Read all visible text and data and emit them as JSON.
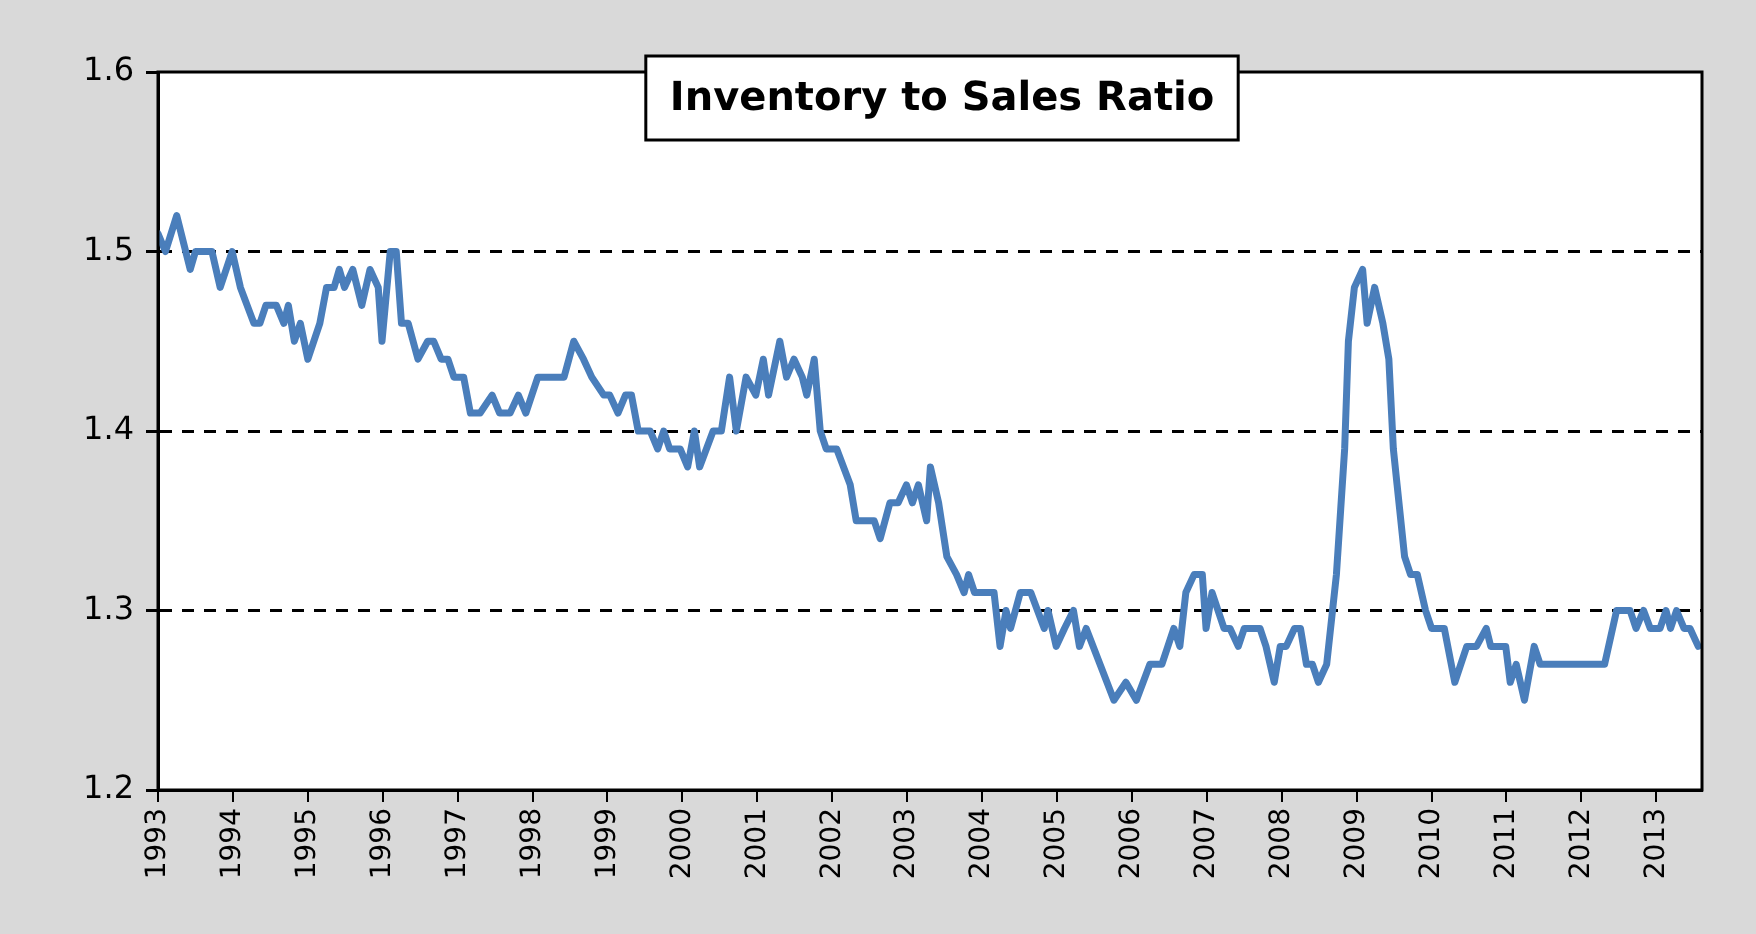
{
  "chart_data": {
    "type": "line",
    "title": "Inventory to Sales Ratio",
    "xlim": [
      1993,
      2013.61
    ],
    "xticks": [
      1993,
      1994,
      1995,
      1996,
      1997,
      1998,
      1999,
      2000,
      2001,
      2002,
      2003,
      2004,
      2005,
      2006,
      2007,
      2008,
      2009,
      2010,
      2011,
      2012,
      2013
    ],
    "ylim": [
      1.2,
      1.6
    ],
    "yticks": [
      1.2,
      1.3,
      1.4,
      1.5,
      1.6
    ],
    "grid": "y",
    "legend": false,
    "marker": "none",
    "line_style": "solid",
    "series": [
      {
        "color": "#4a7ebb",
        "x": [
          1993.0,
          1993.1,
          1993.25,
          1993.43,
          1993.5,
          1993.72,
          1993.83,
          1993.99,
          1994.1,
          1994.28,
          1994.36,
          1994.44,
          1994.58,
          1994.68,
          1994.74,
          1994.82,
          1994.9,
          1995.0,
          1995.16,
          1995.25,
          1995.35,
          1995.42,
          1995.49,
          1995.6,
          1995.72,
          1995.83,
          1995.94,
          1995.99,
          1996.1,
          1996.18,
          1996.25,
          1996.34,
          1996.47,
          1996.6,
          1996.68,
          1996.78,
          1996.87,
          1996.95,
          1997.08,
          1997.17,
          1997.3,
          1997.46,
          1997.56,
          1997.7,
          1997.81,
          1997.91,
          1998.07,
          1998.42,
          1998.55,
          1998.68,
          1998.79,
          1998.95,
          1999.03,
          1999.14,
          1999.24,
          1999.32,
          1999.41,
          1999.57,
          1999.67,
          1999.75,
          1999.83,
          1999.97,
          2000.07,
          2000.16,
          2000.23,
          2000.41,
          2000.52,
          2000.63,
          2000.72,
          2000.85,
          2000.98,
          2001.08,
          2001.15,
          2001.3,
          2001.39,
          2001.49,
          2001.6,
          2001.66,
          2001.76,
          2001.84,
          2001.92,
          2002.06,
          2002.24,
          2002.32,
          2002.56,
          2002.64,
          2002.77,
          2002.88,
          2002.99,
          2003.07,
          2003.15,
          2003.26,
          2003.31,
          2003.42,
          2003.53,
          2003.66,
          2003.76,
          2003.82,
          2003.9,
          2004.16,
          2004.24,
          2004.32,
          2004.38,
          2004.51,
          2004.65,
          2004.83,
          2004.88,
          2004.99,
          2005.1,
          2005.22,
          2005.3,
          2005.39,
          2005.76,
          2005.92,
          2006.06,
          2006.24,
          2006.4,
          2006.56,
          2006.64,
          2006.72,
          2006.83,
          2006.94,
          2006.99,
          2007.07,
          2007.23,
          2007.31,
          2007.42,
          2007.5,
          2007.71,
          2007.79,
          2007.9,
          2007.98,
          2008.06,
          2008.17,
          2008.25,
          2008.33,
          2008.41,
          2008.49,
          2008.6,
          2008.73,
          2008.84,
          2008.89,
          2008.97,
          2009.08,
          2009.14,
          2009.24,
          2009.35,
          2009.43,
          2009.49,
          2009.54,
          2009.64,
          2009.72,
          2009.81,
          2009.92,
          2010.0,
          2010.17,
          2010.31,
          2010.47,
          2010.6,
          2010.73,
          2010.79,
          2010.99,
          2011.05,
          2011.13,
          2011.24,
          2011.37,
          2011.45,
          2012.31,
          2012.47,
          2012.65,
          2012.73,
          2012.83,
          2012.92,
          2013.05,
          2013.13,
          2013.19,
          2013.27,
          2013.37,
          2013.45,
          2013.56
        ],
        "values": [
          1.51,
          1.5,
          1.52,
          1.49,
          1.5,
          1.5,
          1.48,
          1.5,
          1.48,
          1.46,
          1.46,
          1.47,
          1.47,
          1.46,
          1.47,
          1.45,
          1.46,
          1.44,
          1.46,
          1.48,
          1.48,
          1.49,
          1.48,
          1.49,
          1.47,
          1.49,
          1.48,
          1.45,
          1.5,
          1.5,
          1.46,
          1.46,
          1.44,
          1.45,
          1.45,
          1.44,
          1.44,
          1.43,
          1.43,
          1.41,
          1.41,
          1.42,
          1.41,
          1.41,
          1.42,
          1.41,
          1.43,
          1.43,
          1.45,
          1.44,
          1.43,
          1.42,
          1.42,
          1.41,
          1.42,
          1.42,
          1.4,
          1.4,
          1.39,
          1.4,
          1.39,
          1.39,
          1.38,
          1.4,
          1.38,
          1.4,
          1.4,
          1.43,
          1.4,
          1.43,
          1.42,
          1.44,
          1.42,
          1.45,
          1.43,
          1.44,
          1.43,
          1.42,
          1.44,
          1.4,
          1.39,
          1.39,
          1.37,
          1.35,
          1.35,
          1.34,
          1.36,
          1.36,
          1.37,
          1.36,
          1.37,
          1.35,
          1.38,
          1.36,
          1.33,
          1.32,
          1.31,
          1.32,
          1.31,
          1.31,
          1.28,
          1.3,
          1.29,
          1.31,
          1.31,
          1.29,
          1.3,
          1.28,
          1.29,
          1.3,
          1.28,
          1.29,
          1.25,
          1.26,
          1.25,
          1.27,
          1.27,
          1.29,
          1.28,
          1.31,
          1.32,
          1.32,
          1.29,
          1.31,
          1.29,
          1.29,
          1.28,
          1.29,
          1.29,
          1.28,
          1.26,
          1.28,
          1.28,
          1.29,
          1.29,
          1.27,
          1.27,
          1.26,
          1.27,
          1.32,
          1.39,
          1.45,
          1.48,
          1.49,
          1.46,
          1.48,
          1.46,
          1.44,
          1.39,
          1.37,
          1.33,
          1.32,
          1.32,
          1.3,
          1.29,
          1.29,
          1.26,
          1.28,
          1.28,
          1.29,
          1.28,
          1.28,
          1.26,
          1.27,
          1.25,
          1.28,
          1.27,
          1.27,
          1.3,
          1.3,
          1.29,
          1.3,
          1.29,
          1.29,
          1.3,
          1.29,
          1.3,
          1.29,
          1.29,
          1.28
        ]
      }
    ]
  }
}
